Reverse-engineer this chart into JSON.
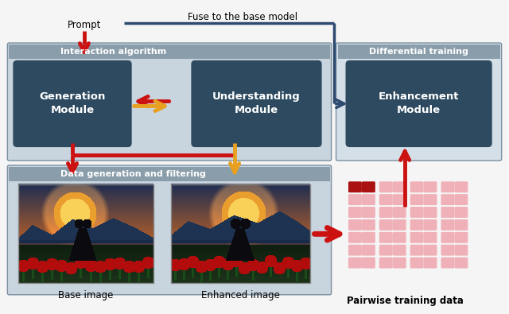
{
  "fig_width": 6.4,
  "fig_height": 3.95,
  "dpi": 100,
  "bg_color": "#f5f5f5",
  "panel_bg": "#c8d4de",
  "panel_header": "#8a9daa",
  "right_panel_bg": "#d5dfe8",
  "right_panel_header": "#8a9daa",
  "module_bg": "#2d4a60",
  "module_text": "#ffffff",
  "title_interact": "Interaction algorithm",
  "title_diff": "Differential training",
  "title_data": "Data generation and filtering",
  "gen_module": "Generation\nModule",
  "und_module": "Understanding\nModule",
  "enh_module": "Enhancement\nModule",
  "label_base": "Base image",
  "label_enhanced": "Enhanced image",
  "label_pairwise": "Pairwise training data",
  "label_prompt": "Prompt",
  "label_fuse": "Fuse to the base model",
  "red_color": "#cc1111",
  "orange_color": "#e8a020",
  "pink_light": "#f0b0b8",
  "pink_dark": "#aa1111",
  "arrow_blue": "#2d4a70",
  "border_color": "#7a8fa0"
}
